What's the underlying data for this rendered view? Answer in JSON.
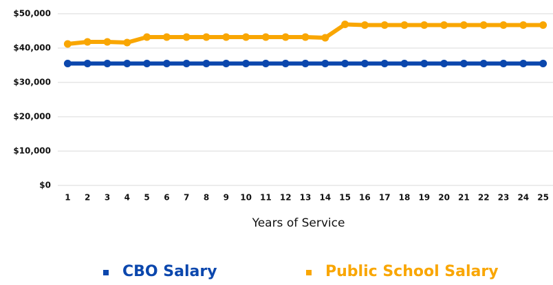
{
  "chart_data": {
    "type": "line",
    "categories": [
      1,
      2,
      3,
      4,
      5,
      6,
      7,
      8,
      9,
      10,
      11,
      12,
      13,
      14,
      15,
      16,
      17,
      18,
      19,
      20,
      21,
      22,
      23,
      24,
      25
    ],
    "x_label": "Years of Service",
    "series": [
      {
        "name": "CBO Salary",
        "color": "#0b47ad",
        "values": [
          35500,
          35500,
          35500,
          35500,
          35500,
          35500,
          35500,
          35500,
          35500,
          35500,
          35500,
          35500,
          35500,
          35500,
          35500,
          35500,
          35500,
          35500,
          35500,
          35500,
          35500,
          35500,
          35500,
          35500,
          35500
        ]
      },
      {
        "name": "Public School Salary",
        "color": "#f9a602",
        "values": [
          41200,
          41800,
          41800,
          41600,
          43200,
          43200,
          43200,
          43200,
          43200,
          43200,
          43200,
          43200,
          43200,
          43000,
          46900,
          46700,
          46700,
          46700,
          46700,
          46700,
          46700,
          46700,
          46700,
          46700,
          46700
        ]
      }
    ],
    "ylim": [
      0,
      50000
    ],
    "yticks": [
      {
        "value": 0,
        "label": "$0"
      },
      {
        "value": 10000,
        "label": "$10,000"
      },
      {
        "value": 20000,
        "label": "$20,000"
      },
      {
        "value": 30000,
        "label": "$30,000"
      },
      {
        "value": 40000,
        "label": "$40,000"
      },
      {
        "value": 50000,
        "label": "$50,000"
      }
    ],
    "grid": true
  }
}
